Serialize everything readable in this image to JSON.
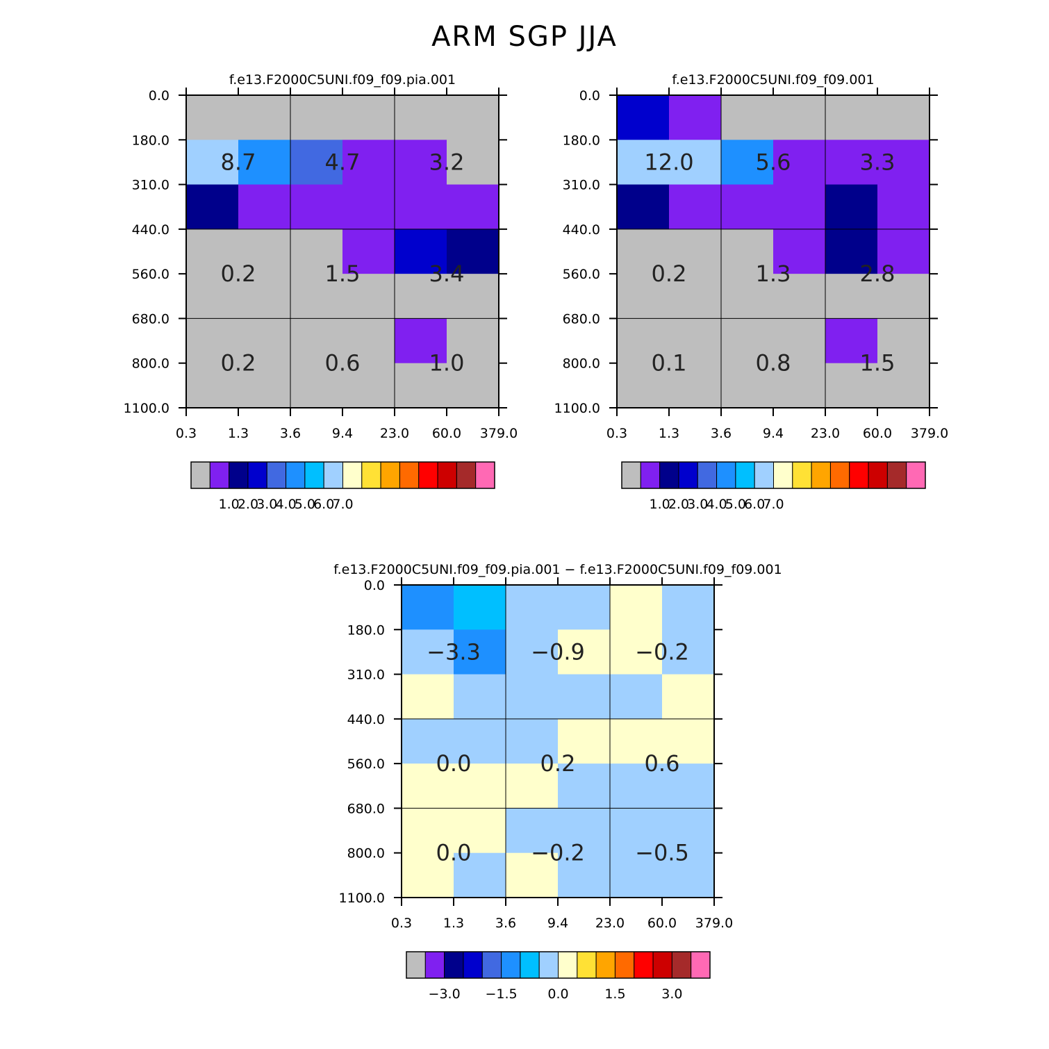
{
  "page": {
    "title": "ARM SGP JJA"
  },
  "palettes": {
    "abs": [
      "#bebebe",
      "#8020f0",
      "#00008b",
      "#0000cd",
      "#4169e1",
      "#1e90ff",
      "#00bfff",
      "#a0d0ff",
      "#ffffcc",
      "#ffe135",
      "#ffa500",
      "#ff6a00",
      "#ff0000",
      "#cd0000",
      "#a52a2a",
      "#ff69b4"
    ],
    "diff": [
      "#bebebe",
      "#8020f0",
      "#00008b",
      "#0000cd",
      "#4169e1",
      "#1e90ff",
      "#00bfff",
      "#a0d0ff",
      "#ffffcc",
      "#ffe135",
      "#ffa500",
      "#ff6a00",
      "#ff0000",
      "#cd0000",
      "#a52a2a",
      "#ff69b4"
    ]
  },
  "chart_data": [
    {
      "type": "heatmap",
      "id": "pia",
      "title": "f.e13.F2000C5UNI.f09_f09.pia.001",
      "x_ticks": [
        "0.3",
        "1.3",
        "3.6",
        "9.4",
        "23.0",
        "60.0",
        "379.0"
      ],
      "y_ticks": [
        "0.0",
        "180.0",
        "310.0",
        "440.0",
        "560.0",
        "680.0",
        "800.0",
        "1100.0"
      ],
      "cells": [
        [
          0,
          0,
          0,
          0,
          0,
          0
        ],
        [
          7,
          5,
          4,
          1,
          1,
          0
        ],
        [
          2,
          1,
          1,
          1,
          1,
          1
        ],
        [
          0,
          0,
          0,
          1,
          3,
          2
        ],
        [
          0,
          0,
          0,
          0,
          0,
          0
        ],
        [
          0,
          0,
          0,
          0,
          1,
          0
        ],
        [
          0,
          0,
          0,
          0,
          0,
          0
        ]
      ],
      "labels": [
        {
          "col": 0,
          "row": 0,
          "text": "8.7"
        },
        {
          "col": 1,
          "row": 0,
          "text": "4.7"
        },
        {
          "col": 2,
          "row": 0,
          "text": "3.2"
        },
        {
          "col": 0,
          "row": 1,
          "text": "0.2"
        },
        {
          "col": 1,
          "row": 1,
          "text": "1.5"
        },
        {
          "col": 2,
          "row": 1,
          "text": "3.4"
        },
        {
          "col": 0,
          "row": 2,
          "text": "0.2"
        },
        {
          "col": 1,
          "row": 2,
          "text": "0.6"
        },
        {
          "col": 2,
          "row": 2,
          "text": "1.0"
        }
      ],
      "colorbar": {
        "palette": "abs",
        "labels": [
          "1.0",
          "2.0",
          "3.0",
          "4.0",
          "5.0",
          "6.0",
          "7.0"
        ],
        "label_start_boundary": 2,
        "label_step": 1
      }
    },
    {
      "type": "heatmap",
      "id": "ctrl",
      "title": "f.e13.F2000C5UNI.f09_f09.001",
      "x_ticks": [
        "0.3",
        "1.3",
        "3.6",
        "9.4",
        "23.0",
        "60.0",
        "379.0"
      ],
      "y_ticks": [
        "0.0",
        "180.0",
        "310.0",
        "440.0",
        "560.0",
        "680.0",
        "800.0",
        "1100.0"
      ],
      "cells": [
        [
          3,
          1,
          0,
          0,
          0,
          0
        ],
        [
          7,
          7,
          5,
          1,
          1,
          1
        ],
        [
          2,
          1,
          1,
          1,
          2,
          1
        ],
        [
          0,
          0,
          0,
          1,
          2,
          1
        ],
        [
          0,
          0,
          0,
          0,
          0,
          0
        ],
        [
          0,
          0,
          0,
          0,
          1,
          0
        ],
        [
          0,
          0,
          0,
          0,
          0,
          0
        ]
      ],
      "labels": [
        {
          "col": 0,
          "row": 0,
          "text": "12.0"
        },
        {
          "col": 1,
          "row": 0,
          "text": "5.6"
        },
        {
          "col": 2,
          "row": 0,
          "text": "3.3"
        },
        {
          "col": 0,
          "row": 1,
          "text": "0.2"
        },
        {
          "col": 1,
          "row": 1,
          "text": "1.3"
        },
        {
          "col": 2,
          "row": 1,
          "text": "2.8"
        },
        {
          "col": 0,
          "row": 2,
          "text": "0.1"
        },
        {
          "col": 1,
          "row": 2,
          "text": "0.8"
        },
        {
          "col": 2,
          "row": 2,
          "text": "1.5"
        }
      ],
      "colorbar": {
        "palette": "abs",
        "labels": [
          "1.0",
          "2.0",
          "3.0",
          "4.0",
          "5.0",
          "6.0",
          "7.0"
        ],
        "label_start_boundary": 2,
        "label_step": 1
      }
    },
    {
      "type": "heatmap",
      "id": "diff",
      "title": "f.e13.F2000C5UNI.f09_f09.pia.001 − f.e13.F2000C5UNI.f09_f09.001",
      "x_ticks": [
        "0.3",
        "1.3",
        "3.6",
        "9.4",
        "23.0",
        "60.0",
        "379.0"
      ],
      "y_ticks": [
        "0.0",
        "180.0",
        "310.0",
        "440.0",
        "560.0",
        "680.0",
        "800.0",
        "1100.0"
      ],
      "cells": [
        [
          5,
          6,
          7,
          7,
          8,
          7
        ],
        [
          7,
          5,
          7,
          8,
          8,
          7
        ],
        [
          8,
          7,
          7,
          7,
          7,
          8
        ],
        [
          7,
          7,
          7,
          8,
          8,
          8
        ],
        [
          8,
          8,
          8,
          7,
          7,
          7
        ],
        [
          8,
          8,
          7,
          7,
          7,
          7
        ],
        [
          8,
          7,
          8,
          7,
          7,
          7
        ]
      ],
      "labels": [
        {
          "col": 0,
          "row": 0,
          "text": "−3.3"
        },
        {
          "col": 1,
          "row": 0,
          "text": "−0.9"
        },
        {
          "col": 2,
          "row": 0,
          "text": "−0.2"
        },
        {
          "col": 0,
          "row": 1,
          "text": "0.0"
        },
        {
          "col": 1,
          "row": 1,
          "text": "0.2"
        },
        {
          "col": 2,
          "row": 1,
          "text": "0.6"
        },
        {
          "col": 0,
          "row": 2,
          "text": "0.0"
        },
        {
          "col": 1,
          "row": 2,
          "text": "−0.2"
        },
        {
          "col": 2,
          "row": 2,
          "text": "−0.5"
        }
      ],
      "colorbar": {
        "palette": "diff",
        "labels": [
          "−3.0",
          "−1.5",
          "0.0",
          "1.5",
          "3.0"
        ],
        "label_start_boundary": 2,
        "label_step": 3
      }
    }
  ]
}
